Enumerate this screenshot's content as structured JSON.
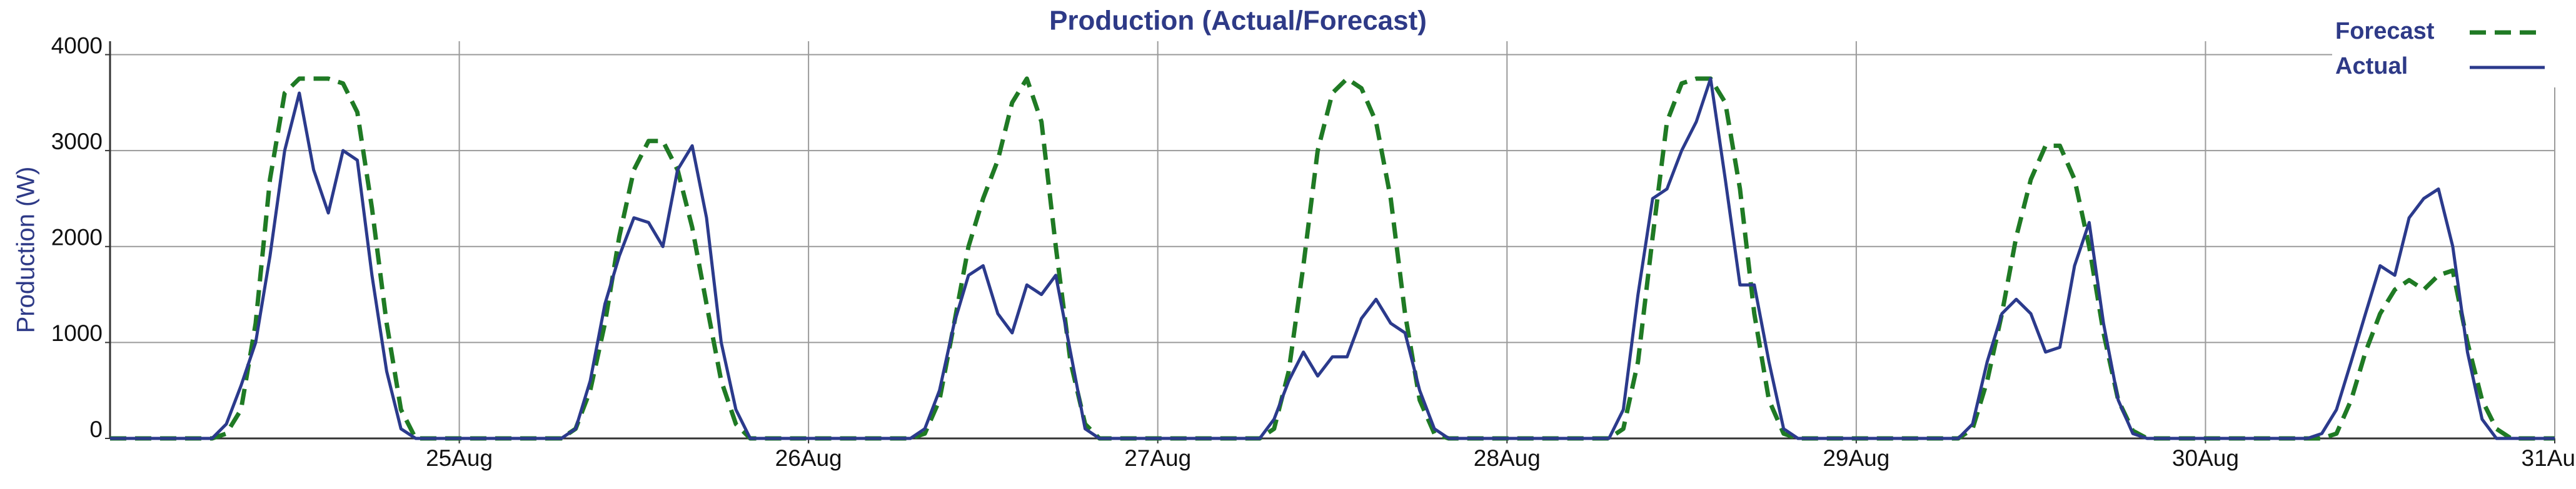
{
  "chart_data": {
    "type": "line",
    "title": "Production (Actual/Forecast)",
    "ylabel": "Production (W)",
    "xlim": [
      24,
      31
    ],
    "xticks": [
      {
        "value": 25,
        "label": "25Aug"
      },
      {
        "value": 26,
        "label": "26Aug"
      },
      {
        "value": 27,
        "label": "27Aug"
      },
      {
        "value": 28,
        "label": "28Aug"
      },
      {
        "value": 29,
        "label": "29Aug"
      },
      {
        "value": 30,
        "label": "30Aug"
      },
      {
        "value": 31,
        "label": "31Aug"
      }
    ],
    "ylim": [
      0,
      4140
    ],
    "yticks": [
      0,
      1000,
      2000,
      3000,
      4000
    ],
    "grid": true,
    "legend": "upper right",
    "x": [
      24,
      24.292,
      24.333,
      24.375,
      24.417,
      24.458,
      24.5,
      24.542,
      24.583,
      24.625,
      24.667,
      24.708,
      24.75,
      24.792,
      24.833,
      24.875,
      25,
      25.292,
      25.333,
      25.375,
      25.417,
      25.458,
      25.5,
      25.542,
      25.583,
      25.625,
      25.667,
      25.708,
      25.75,
      25.792,
      25.833,
      25.875,
      26,
      26.292,
      26.333,
      26.375,
      26.417,
      26.458,
      26.5,
      26.542,
      26.583,
      26.625,
      26.667,
      26.708,
      26.75,
      26.792,
      26.833,
      26.875,
      27,
      27.292,
      27.333,
      27.375,
      27.417,
      27.458,
      27.5,
      27.542,
      27.583,
      27.625,
      27.667,
      27.708,
      27.75,
      27.792,
      27.833,
      27.875,
      28,
      28.292,
      28.333,
      28.375,
      28.417,
      28.458,
      28.5,
      28.542,
      28.583,
      28.625,
      28.667,
      28.708,
      28.75,
      28.792,
      28.833,
      28.875,
      29,
      29.292,
      29.333,
      29.375,
      29.417,
      29.458,
      29.5,
      29.542,
      29.583,
      29.625,
      29.667,
      29.708,
      29.75,
      29.792,
      29.833,
      29.875,
      30,
      30.292,
      30.333,
      30.375,
      30.417,
      30.458,
      30.5,
      30.542,
      30.583,
      30.625,
      30.667,
      30.708,
      30.75,
      30.792,
      30.833,
      30.875,
      31
    ],
    "series": [
      {
        "name": "Forecast",
        "color": "#1f7a24",
        "dash": true,
        "values": [
          0,
          0,
          50,
          300,
          1200,
          2700,
          3600,
          3750,
          3750,
          3750,
          3700,
          3400,
          2400,
          1200,
          300,
          0,
          0,
          0,
          100,
          500,
          1200,
          2100,
          2800,
          3100,
          3100,
          2800,
          2200,
          1400,
          600,
          150,
          0,
          0,
          0,
          0,
          50,
          400,
          1200,
          2000,
          2500,
          2900,
          3500,
          3750,
          3300,
          2000,
          800,
          150,
          0,
          0,
          0,
          0,
          100,
          700,
          1800,
          3000,
          3600,
          3750,
          3650,
          3300,
          2500,
          1300,
          400,
          50,
          0,
          0,
          0,
          0,
          100,
          800,
          2100,
          3300,
          3700,
          3750,
          3750,
          3500,
          2600,
          1300,
          400,
          50,
          0,
          0,
          0,
          0,
          100,
          600,
          1300,
          2100,
          2700,
          3050,
          3050,
          2700,
          2000,
          1100,
          400,
          80,
          0,
          0,
          0,
          0,
          0,
          50,
          400,
          900,
          1300,
          1550,
          1650,
          1550,
          1700,
          1750,
          1000,
          400,
          100,
          0,
          0
        ]
      },
      {
        "name": "Actual",
        "color": "#2b3a8c",
        "dash": false,
        "values": [
          0,
          0,
          150,
          550,
          1000,
          1900,
          3000,
          3600,
          2800,
          2350,
          3000,
          2900,
          1700,
          700,
          100,
          0,
          0,
          0,
          100,
          600,
          1400,
          1900,
          2300,
          2250,
          2000,
          2800,
          3050,
          2300,
          1000,
          300,
          0,
          0,
          0,
          0,
          100,
          500,
          1200,
          1700,
          1800,
          1300,
          1100,
          1600,
          1500,
          1700,
          900,
          100,
          0,
          0,
          0,
          0,
          200,
          600,
          900,
          650,
          850,
          850,
          1250,
          1450,
          1200,
          1100,
          500,
          100,
          0,
          0,
          0,
          0,
          300,
          1500,
          2500,
          2600,
          3000,
          3300,
          3750,
          2700,
          1600,
          1600,
          800,
          100,
          0,
          0,
          0,
          0,
          150,
          800,
          1300,
          1450,
          1300,
          900,
          950,
          1800,
          2250,
          1200,
          400,
          50,
          0,
          0,
          0,
          0,
          50,
          300,
          800,
          1300,
          1800,
          1700,
          2300,
          2500,
          2600,
          2000,
          900,
          200,
          0,
          0,
          0
        ]
      }
    ]
  }
}
